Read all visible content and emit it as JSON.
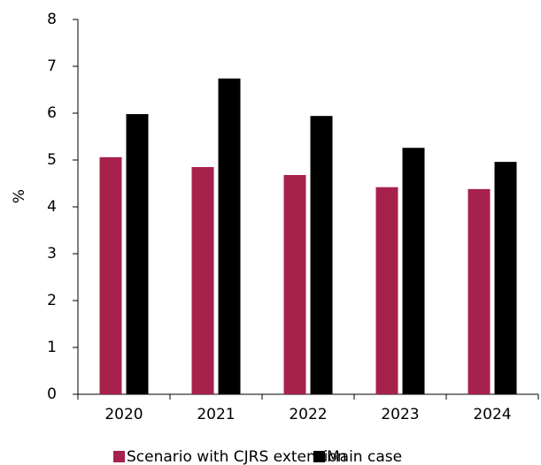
{
  "chart_data": {
    "type": "bar",
    "y_label": "%",
    "categories": [
      "2020",
      "2021",
      "2022",
      "2023",
      "2024"
    ],
    "series": [
      {
        "name": "Scenario with CJRS extension",
        "color": "#a6214b",
        "values": [
          5.06,
          4.85,
          4.68,
          4.42,
          4.38
        ]
      },
      {
        "name": "Main case",
        "color": "#000000",
        "values": [
          5.98,
          6.74,
          5.94,
          5.26,
          4.96
        ]
      }
    ],
    "ylim": [
      0,
      8
    ],
    "yticks": [
      0,
      1,
      2,
      3,
      4,
      5,
      6,
      7,
      8
    ],
    "grid": false
  }
}
